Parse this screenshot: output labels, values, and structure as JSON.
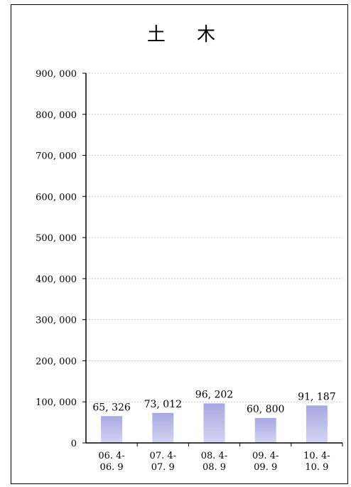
{
  "chart_data": {
    "type": "bar",
    "title": "土 木",
    "categories": [
      "06. 4- 06. 9",
      "07. 4- 07. 9",
      "08. 4- 08. 9",
      "09. 4- 09. 9",
      "10. 4- 10. 9"
    ],
    "category_lines": [
      [
        "06. 4-",
        "06. 9"
      ],
      [
        "07. 4-",
        "07. 9"
      ],
      [
        "08. 4-",
        "08. 9"
      ],
      [
        "09. 4-",
        "09. 9"
      ],
      [
        "10. 4-",
        "10. 9"
      ]
    ],
    "values": [
      65326,
      73012,
      96202,
      60800,
      91187
    ],
    "value_labels": [
      "65, 326",
      "73, 012",
      "96, 202",
      "60, 800",
      "91, 187"
    ],
    "yticks": [
      0,
      100000,
      200000,
      300000,
      400000,
      500000,
      600000,
      700000,
      800000,
      900000
    ],
    "ytick_labels": [
      "0",
      "100, 000",
      "200, 000",
      "300, 000",
      "400, 000",
      "500, 000",
      "600, 000",
      "700, 000",
      "800, 000",
      "900, 000"
    ],
    "ylim": [
      0,
      900000
    ],
    "grid": true,
    "legend": "none",
    "bar_color_top": "#a8a8e0",
    "bar_color_bottom": "#d4d4f6",
    "xlabel": "",
    "ylabel": ""
  }
}
